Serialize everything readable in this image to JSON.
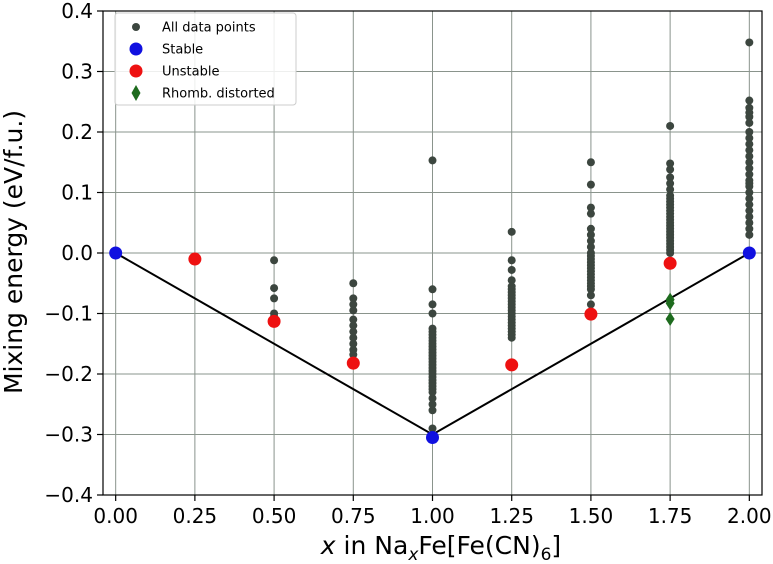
{
  "chart_data": {
    "type": "scatter",
    "xlabel_parts": {
      "var": "x",
      "mid": " in Na",
      "sub1": "x",
      "mid2": "Fe[Fe(CN)",
      "sub2": "6",
      "end": "]"
    },
    "ylabel": "Mixing energy (eV/f.u.)",
    "xlim": [
      -0.04,
      2.04
    ],
    "ylim": [
      -0.4,
      0.4
    ],
    "xticks": [
      "0.00",
      "0.25",
      "0.50",
      "0.75",
      "1.00",
      "1.25",
      "1.50",
      "1.75",
      "2.00"
    ],
    "yticks": [
      "0.4",
      "0.3",
      "0.2",
      "0.1",
      "0.0",
      "−0.1",
      "−0.2",
      "−0.3",
      "−0.4"
    ],
    "grid": true,
    "legend_position": "top-left",
    "hull_line": {
      "x": [
        0.0,
        1.0,
        2.0
      ],
      "y": [
        0.0,
        -0.3,
        0.0
      ],
      "color": "#000000"
    },
    "series": [
      {
        "name": "All data points",
        "color": "#3c463f",
        "marker": "circle-small",
        "points": [
          [
            0.5,
            -0.012
          ],
          [
            0.5,
            -0.058
          ],
          [
            0.5,
            -0.075
          ],
          [
            0.5,
            -0.1
          ],
          [
            0.5,
            -0.105
          ],
          [
            0.75,
            -0.05
          ],
          [
            0.75,
            -0.075
          ],
          [
            0.75,
            -0.085
          ],
          [
            0.75,
            -0.095
          ],
          [
            0.75,
            -0.11
          ],
          [
            0.75,
            -0.12
          ],
          [
            0.75,
            -0.13
          ],
          [
            0.75,
            -0.14
          ],
          [
            0.75,
            -0.15
          ],
          [
            0.75,
            -0.16
          ],
          [
            0.75,
            -0.168
          ],
          [
            1.0,
            0.153
          ],
          [
            1.0,
            -0.06
          ],
          [
            1.0,
            -0.085
          ],
          [
            1.0,
            -0.1
          ],
          [
            1.0,
            -0.125
          ],
          [
            1.0,
            -0.13
          ],
          [
            1.0,
            -0.135
          ],
          [
            1.0,
            -0.14
          ],
          [
            1.0,
            -0.145
          ],
          [
            1.0,
            -0.15
          ],
          [
            1.0,
            -0.155
          ],
          [
            1.0,
            -0.16
          ],
          [
            1.0,
            -0.165
          ],
          [
            1.0,
            -0.17
          ],
          [
            1.0,
            -0.175
          ],
          [
            1.0,
            -0.18
          ],
          [
            1.0,
            -0.185
          ],
          [
            1.0,
            -0.19
          ],
          [
            1.0,
            -0.195
          ],
          [
            1.0,
            -0.2
          ],
          [
            1.0,
            -0.205
          ],
          [
            1.0,
            -0.21
          ],
          [
            1.0,
            -0.215
          ],
          [
            1.0,
            -0.22
          ],
          [
            1.0,
            -0.225
          ],
          [
            1.0,
            -0.23
          ],
          [
            1.0,
            -0.24
          ],
          [
            1.0,
            -0.25
          ],
          [
            1.0,
            -0.26
          ],
          [
            1.0,
            -0.29
          ],
          [
            1.25,
            0.035
          ],
          [
            1.25,
            -0.012
          ],
          [
            1.25,
            -0.028
          ],
          [
            1.25,
            -0.045
          ],
          [
            1.25,
            -0.055
          ],
          [
            1.25,
            -0.06
          ],
          [
            1.25,
            -0.065
          ],
          [
            1.25,
            -0.07
          ],
          [
            1.25,
            -0.075
          ],
          [
            1.25,
            -0.08
          ],
          [
            1.25,
            -0.085
          ],
          [
            1.25,
            -0.09
          ],
          [
            1.25,
            -0.095
          ],
          [
            1.25,
            -0.1
          ],
          [
            1.25,
            -0.105
          ],
          [
            1.25,
            -0.11
          ],
          [
            1.25,
            -0.115
          ],
          [
            1.25,
            -0.12
          ],
          [
            1.25,
            -0.125
          ],
          [
            1.25,
            -0.13
          ],
          [
            1.25,
            -0.135
          ],
          [
            1.25,
            -0.14
          ],
          [
            1.5,
            0.15
          ],
          [
            1.5,
            0.113
          ],
          [
            1.5,
            0.075
          ],
          [
            1.5,
            0.065
          ],
          [
            1.5,
            0.04
          ],
          [
            1.5,
            0.03
          ],
          [
            1.5,
            0.02
          ],
          [
            1.5,
            0.01
          ],
          [
            1.5,
            0.0
          ],
          [
            1.5,
            -0.005
          ],
          [
            1.5,
            -0.01
          ],
          [
            1.5,
            -0.015
          ],
          [
            1.5,
            -0.02
          ],
          [
            1.5,
            -0.025
          ],
          [
            1.5,
            -0.03
          ],
          [
            1.5,
            -0.035
          ],
          [
            1.5,
            -0.04
          ],
          [
            1.5,
            -0.045
          ],
          [
            1.5,
            -0.05
          ],
          [
            1.5,
            -0.055
          ],
          [
            1.5,
            -0.06
          ],
          [
            1.5,
            -0.07
          ],
          [
            1.5,
            -0.085
          ],
          [
            1.75,
            0.21
          ],
          [
            1.75,
            0.148
          ],
          [
            1.75,
            0.138
          ],
          [
            1.75,
            0.125
          ],
          [
            1.75,
            0.115
          ],
          [
            1.75,
            0.105
          ],
          [
            1.75,
            0.095
          ],
          [
            1.75,
            0.09
          ],
          [
            1.75,
            0.085
          ],
          [
            1.75,
            0.08
          ],
          [
            1.75,
            0.075
          ],
          [
            1.75,
            0.07
          ],
          [
            1.75,
            0.065
          ],
          [
            1.75,
            0.06
          ],
          [
            1.75,
            0.055
          ],
          [
            1.75,
            0.05
          ],
          [
            1.75,
            0.045
          ],
          [
            1.75,
            0.04
          ],
          [
            1.75,
            0.035
          ],
          [
            1.75,
            0.03
          ],
          [
            1.75,
            0.025
          ],
          [
            1.75,
            0.02
          ],
          [
            1.75,
            0.015
          ],
          [
            1.75,
            0.01
          ],
          [
            1.75,
            0.005
          ],
          [
            1.75,
            0.0
          ],
          [
            2.0,
            0.348
          ],
          [
            2.0,
            0.252
          ],
          [
            2.0,
            0.24
          ],
          [
            2.0,
            0.232
          ],
          [
            2.0,
            0.225
          ],
          [
            2.0,
            0.215
          ],
          [
            2.0,
            0.2
          ],
          [
            2.0,
            0.19
          ],
          [
            2.0,
            0.18
          ],
          [
            2.0,
            0.17
          ],
          [
            2.0,
            0.16
          ],
          [
            2.0,
            0.15
          ],
          [
            2.0,
            0.14
          ],
          [
            2.0,
            0.13
          ],
          [
            2.0,
            0.12
          ],
          [
            2.0,
            0.115
          ],
          [
            2.0,
            0.11
          ],
          [
            2.0,
            0.1
          ],
          [
            2.0,
            0.09
          ],
          [
            2.0,
            0.08
          ],
          [
            2.0,
            0.07
          ],
          [
            2.0,
            0.06
          ],
          [
            2.0,
            0.05
          ],
          [
            2.0,
            0.04
          ],
          [
            2.0,
            0.03
          ]
        ]
      },
      {
        "name": "Stable",
        "color": "#1010e0",
        "marker": "circle-large",
        "points": [
          [
            0.0,
            0.0
          ],
          [
            1.0,
            -0.305
          ],
          [
            2.0,
            0.0
          ]
        ]
      },
      {
        "name": "Unstable",
        "color": "#ee1111",
        "marker": "circle-large",
        "points": [
          [
            0.25,
            -0.01
          ],
          [
            0.5,
            -0.113
          ],
          [
            0.75,
            -0.182
          ],
          [
            1.25,
            -0.185
          ],
          [
            1.5,
            -0.101
          ],
          [
            1.75,
            -0.017
          ]
        ]
      },
      {
        "name": "Rhomb. distorted",
        "color": "#1e6b1e",
        "marker": "diamond",
        "points": [
          [
            1.75,
            -0.077
          ],
          [
            1.75,
            -0.083
          ],
          [
            1.75,
            -0.109
          ]
        ]
      }
    ]
  }
}
